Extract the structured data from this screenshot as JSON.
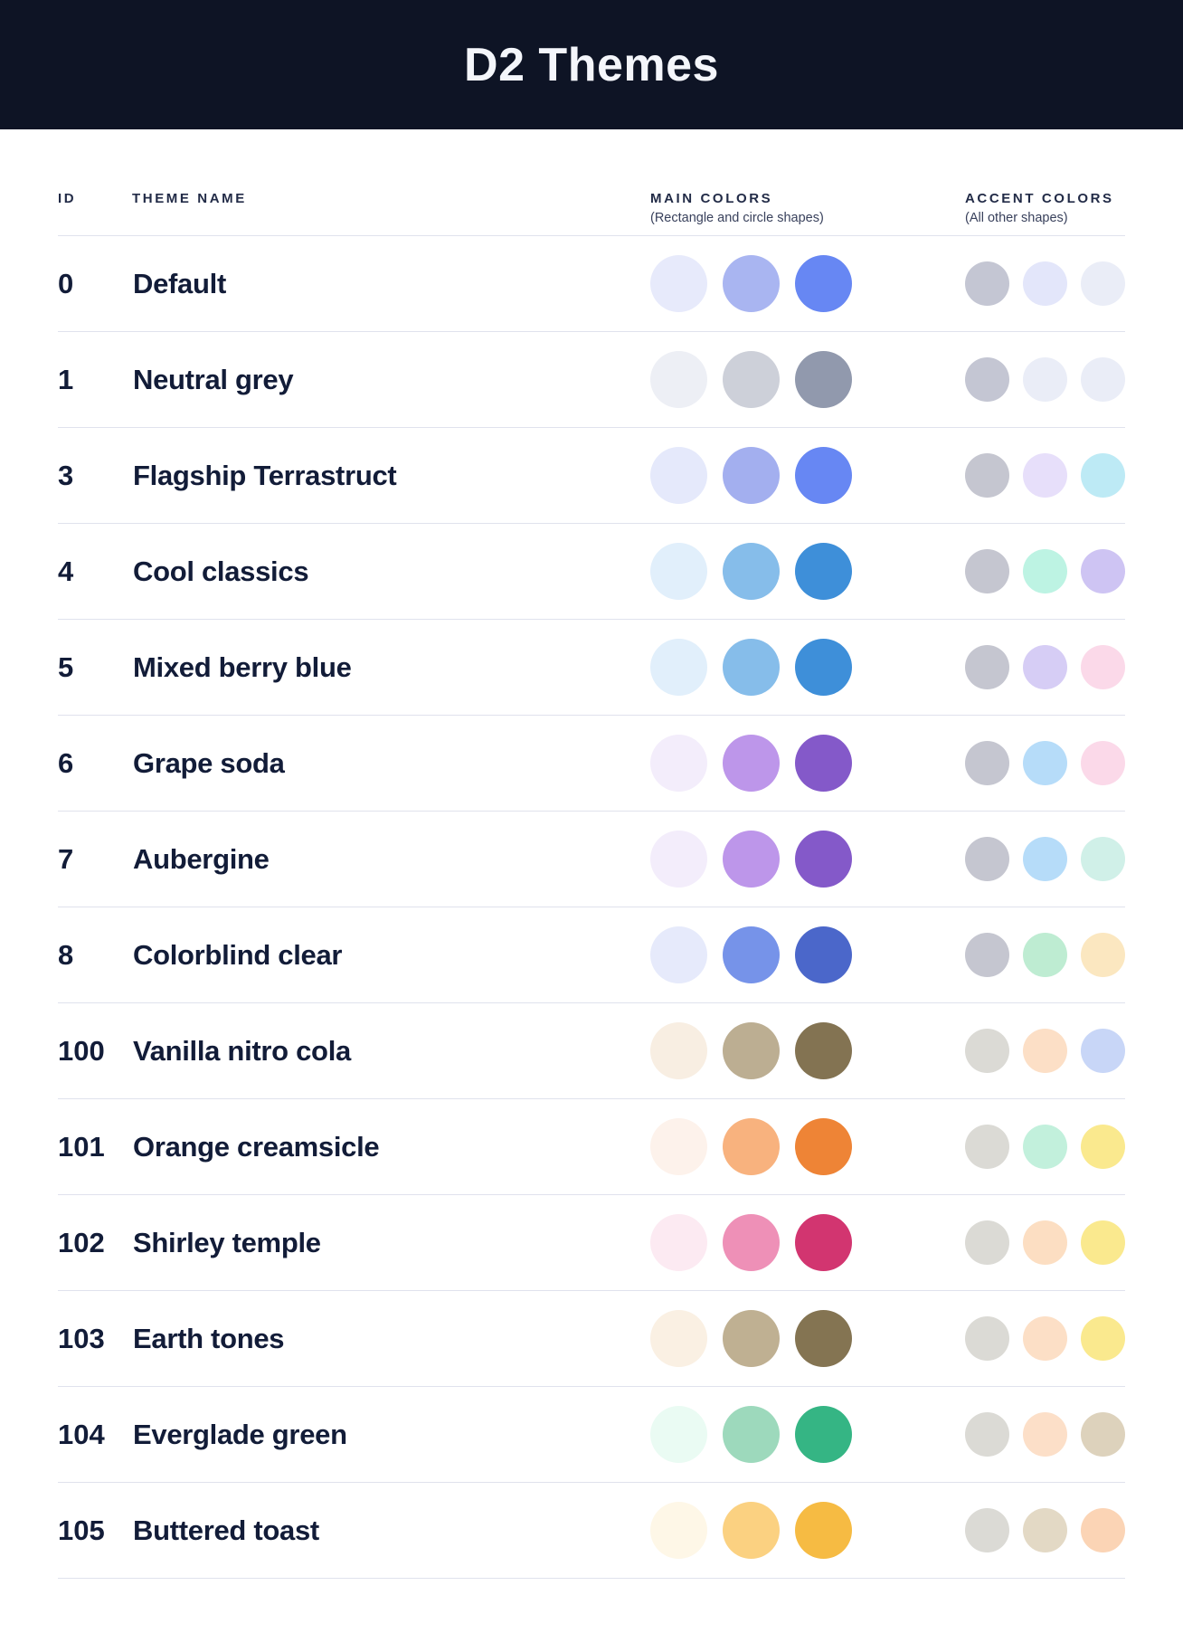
{
  "page": {
    "title": "D2 Themes"
  },
  "colors": {
    "header_bg": "#0E1425",
    "header_text": "#F4F6FB",
    "column_header_text": "#222B47",
    "column_subtitle_text": "#39415C",
    "row_text": "#121C38",
    "divider": "#E0E2ED",
    "page_bg": "#FFFFFF"
  },
  "table": {
    "columns": [
      {
        "label": "ID",
        "sublabel": ""
      },
      {
        "label": "THEME NAME",
        "sublabel": ""
      },
      {
        "label": "MAIN COLORS",
        "sublabel": "(Rectangle and circle shapes)"
      },
      {
        "label": "ACCENT COLORS",
        "sublabel": "(All other shapes)"
      }
    ],
    "rows": [
      {
        "id": "0",
        "name": "Default",
        "main": [
          "#E7EAFB",
          "#A9B5F1",
          "#6787F3"
        ],
        "accent": [
          "#C4C6D3",
          "#E3E6FA",
          "#EAEDF7"
        ]
      },
      {
        "id": "1",
        "name": "Neutral grey",
        "main": [
          "#EDEFF5",
          "#CDD0D9",
          "#9199AD"
        ],
        "accent": [
          "#C4C6D3",
          "#EAEDF7",
          "#EAEDF7"
        ]
      },
      {
        "id": "3",
        "name": "Flagship Terrastruct",
        "main": [
          "#E5E9FB",
          "#A3AFEF",
          "#6787F3"
        ],
        "accent": [
          "#C5C6D0",
          "#E7DFFA",
          "#BDEAF5"
        ]
      },
      {
        "id": "4",
        "name": "Cool classics",
        "main": [
          "#E1EFFB",
          "#86BDEA",
          "#3E8FD9"
        ],
        "accent": [
          "#C5C6D0",
          "#BDF3E3",
          "#CEC4F3"
        ]
      },
      {
        "id": "5",
        "name": "Mixed berry blue",
        "main": [
          "#E1EFFB",
          "#86BDEA",
          "#3E8FD9"
        ],
        "accent": [
          "#C5C6D0",
          "#D6CDF5",
          "#FBD9E9"
        ]
      },
      {
        "id": "6",
        "name": "Grape soda",
        "main": [
          "#F3EDFB",
          "#BD96EA",
          "#8459C9"
        ],
        "accent": [
          "#C5C6D0",
          "#B6DCF9",
          "#FBD9E9"
        ]
      },
      {
        "id": "7",
        "name": "Aubergine",
        "main": [
          "#F3EDFB",
          "#BD96EA",
          "#8459C9"
        ],
        "accent": [
          "#C5C6D0",
          "#B6DCF9",
          "#D0F0E8"
        ]
      },
      {
        "id": "8",
        "name": "Colorblind clear",
        "main": [
          "#E6EAFB",
          "#7693E9",
          "#4B67CA"
        ],
        "accent": [
          "#C5C6D0",
          "#BEECD2",
          "#FBE7C0"
        ]
      },
      {
        "id": "100",
        "name": "Vanilla nitro cola",
        "main": [
          "#F8EEE2",
          "#BCAE92",
          "#837352"
        ],
        "accent": [
          "#DBDAD5",
          "#FCDFC6",
          "#C8D6F7"
        ]
      },
      {
        "id": "101",
        "name": "Orange creamsicle",
        "main": [
          "#FDF2EB",
          "#F8B27E",
          "#EE8436"
        ],
        "accent": [
          "#DBDAD5",
          "#C2F0DC",
          "#FAE98E"
        ]
      },
      {
        "id": "102",
        "name": "Shirley temple",
        "main": [
          "#FCEAF2",
          "#EE90B7",
          "#D23570"
        ],
        "accent": [
          "#DBDAD5",
          "#FCDEC2",
          "#FAE98E"
        ]
      },
      {
        "id": "103",
        "name": "Earth tones",
        "main": [
          "#FAF0E3",
          "#BFB092",
          "#847452"
        ],
        "accent": [
          "#DBDAD5",
          "#FCDFC6",
          "#FAE98E"
        ]
      },
      {
        "id": "104",
        "name": "Everglade green",
        "main": [
          "#EAFBF3",
          "#9DD9BC",
          "#35B584"
        ],
        "accent": [
          "#DBDAD5",
          "#FCDFC8",
          "#DDD2BC"
        ]
      },
      {
        "id": "105",
        "name": "Buttered toast",
        "main": [
          "#FEF7E7",
          "#FBD181",
          "#F6BB43"
        ],
        "accent": [
          "#DBDAD5",
          "#E3D9C5",
          "#FBD4B5"
        ]
      }
    ]
  }
}
